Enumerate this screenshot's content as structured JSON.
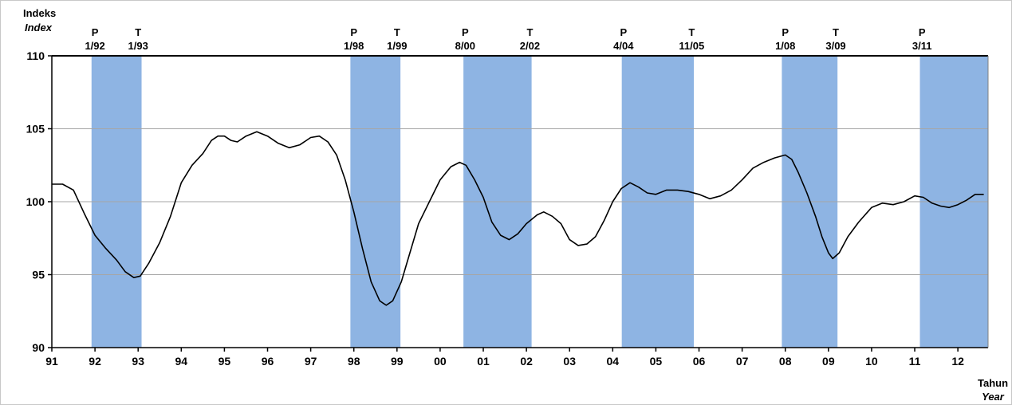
{
  "chart_data": {
    "type": "line",
    "title": "",
    "ylabel": "Indeks",
    "ylabel_en": "Index",
    "xlabel": "Tahun",
    "xlabel_en": "Year",
    "ylim": [
      90,
      110
    ],
    "yticks": [
      90,
      95,
      100,
      105,
      110
    ],
    "xlim": [
      1991.0,
      2012.7
    ],
    "xticks": [
      {
        "label": "91",
        "x": 1991
      },
      {
        "label": "92",
        "x": 1992
      },
      {
        "label": "93",
        "x": 1993
      },
      {
        "label": "94",
        "x": 1994
      },
      {
        "label": "95",
        "x": 1995
      },
      {
        "label": "96",
        "x": 1996
      },
      {
        "label": "97",
        "x": 1997
      },
      {
        "label": "98",
        "x": 1998
      },
      {
        "label": "99",
        "x": 1999
      },
      {
        "label": "00",
        "x": 2000
      },
      {
        "label": "01",
        "x": 2001
      },
      {
        "label": "02",
        "x": 2002
      },
      {
        "label": "03",
        "x": 2003
      },
      {
        "label": "04",
        "x": 2004
      },
      {
        "label": "05",
        "x": 2005
      },
      {
        "label": "06",
        "x": 2006
      },
      {
        "label": "07",
        "x": 2007
      },
      {
        "label": "08",
        "x": 2008
      },
      {
        "label": "09",
        "x": 2009
      },
      {
        "label": "10",
        "x": 2010
      },
      {
        "label": "11",
        "x": 2011
      },
      {
        "label": "12",
        "x": 2012
      }
    ],
    "grid": "horizontal",
    "shade_color": "#8eb4e3",
    "line_color": "#000000",
    "shaded_periods": [
      {
        "start": 1991.92,
        "end": 1993.08
      },
      {
        "start": 1997.92,
        "end": 1999.08
      },
      {
        "start": 2000.54,
        "end": 2002.12
      },
      {
        "start": 2004.21,
        "end": 2005.88
      },
      {
        "start": 2007.92,
        "end": 2009.21
      },
      {
        "start": 2011.12,
        "end": 2012.72
      }
    ],
    "phase_markers": [
      {
        "letter": "P",
        "date": "1/92",
        "x": 1992.0
      },
      {
        "letter": "T",
        "date": "1/93",
        "x": 1993.0
      },
      {
        "letter": "P",
        "date": "1/98",
        "x": 1998.0
      },
      {
        "letter": "T",
        "date": "1/99",
        "x": 1999.0
      },
      {
        "letter": "P",
        "date": "8/00",
        "x": 2000.58
      },
      {
        "letter": "T",
        "date": "2/02",
        "x": 2002.08
      },
      {
        "letter": "P",
        "date": "4/04",
        "x": 2004.25
      },
      {
        "letter": "T",
        "date": "11/05",
        "x": 2005.83
      },
      {
        "letter": "P",
        "date": "1/08",
        "x": 2008.0
      },
      {
        "letter": "T",
        "date": "3/09",
        "x": 2009.17
      },
      {
        "letter": "P",
        "date": "3/11",
        "x": 2011.17
      }
    ],
    "series": [
      {
        "values": [
          [
            1991.0,
            101.2
          ],
          [
            1991.25,
            101.2
          ],
          [
            1991.5,
            100.8
          ],
          [
            1991.75,
            99.2
          ],
          [
            1992.0,
            97.7
          ],
          [
            1992.25,
            96.8
          ],
          [
            1992.5,
            96.0
          ],
          [
            1992.7,
            95.2
          ],
          [
            1992.9,
            94.8
          ],
          [
            1993.05,
            94.9
          ],
          [
            1993.25,
            95.8
          ],
          [
            1993.5,
            97.2
          ],
          [
            1993.75,
            99.0
          ],
          [
            1994.0,
            101.3
          ],
          [
            1994.25,
            102.5
          ],
          [
            1994.5,
            103.3
          ],
          [
            1994.7,
            104.2
          ],
          [
            1994.85,
            104.5
          ],
          [
            1995.0,
            104.5
          ],
          [
            1995.15,
            104.2
          ],
          [
            1995.3,
            104.1
          ],
          [
            1995.5,
            104.5
          ],
          [
            1995.75,
            104.8
          ],
          [
            1996.0,
            104.5
          ],
          [
            1996.25,
            104.0
          ],
          [
            1996.5,
            103.7
          ],
          [
            1996.75,
            103.9
          ],
          [
            1997.0,
            104.4
          ],
          [
            1997.2,
            104.5
          ],
          [
            1997.4,
            104.1
          ],
          [
            1997.6,
            103.2
          ],
          [
            1997.8,
            101.5
          ],
          [
            1998.0,
            99.3
          ],
          [
            1998.2,
            96.8
          ],
          [
            1998.4,
            94.5
          ],
          [
            1998.6,
            93.2
          ],
          [
            1998.75,
            92.9
          ],
          [
            1998.9,
            93.2
          ],
          [
            1999.1,
            94.5
          ],
          [
            1999.3,
            96.5
          ],
          [
            1999.5,
            98.5
          ],
          [
            1999.75,
            100.0
          ],
          [
            2000.0,
            101.5
          ],
          [
            2000.25,
            102.4
          ],
          [
            2000.45,
            102.7
          ],
          [
            2000.6,
            102.5
          ],
          [
            2000.8,
            101.5
          ],
          [
            2001.0,
            100.3
          ],
          [
            2001.2,
            98.6
          ],
          [
            2001.4,
            97.7
          ],
          [
            2001.6,
            97.4
          ],
          [
            2001.8,
            97.8
          ],
          [
            2002.0,
            98.5
          ],
          [
            2002.25,
            99.1
          ],
          [
            2002.4,
            99.3
          ],
          [
            2002.6,
            99.0
          ],
          [
            2002.8,
            98.5
          ],
          [
            2003.0,
            97.4
          ],
          [
            2003.2,
            97.0
          ],
          [
            2003.4,
            97.1
          ],
          [
            2003.6,
            97.6
          ],
          [
            2003.8,
            98.7
          ],
          [
            2004.0,
            100.0
          ],
          [
            2004.2,
            100.9
          ],
          [
            2004.4,
            101.3
          ],
          [
            2004.6,
            101.0
          ],
          [
            2004.8,
            100.6
          ],
          [
            2005.0,
            100.5
          ],
          [
            2005.25,
            100.8
          ],
          [
            2005.5,
            100.8
          ],
          [
            2005.75,
            100.7
          ],
          [
            2006.0,
            100.5
          ],
          [
            2006.25,
            100.2
          ],
          [
            2006.5,
            100.4
          ],
          [
            2006.75,
            100.8
          ],
          [
            2007.0,
            101.5
          ],
          [
            2007.25,
            102.3
          ],
          [
            2007.5,
            102.7
          ],
          [
            2007.75,
            103.0
          ],
          [
            2008.0,
            103.2
          ],
          [
            2008.15,
            102.9
          ],
          [
            2008.3,
            102.0
          ],
          [
            2008.5,
            100.6
          ],
          [
            2008.7,
            99.0
          ],
          [
            2008.85,
            97.6
          ],
          [
            2009.0,
            96.5
          ],
          [
            2009.1,
            96.1
          ],
          [
            2009.25,
            96.5
          ],
          [
            2009.45,
            97.6
          ],
          [
            2009.7,
            98.6
          ],
          [
            2010.0,
            99.6
          ],
          [
            2010.25,
            99.9
          ],
          [
            2010.5,
            99.8
          ],
          [
            2010.75,
            100.0
          ],
          [
            2011.0,
            100.4
          ],
          [
            2011.2,
            100.3
          ],
          [
            2011.4,
            99.9
          ],
          [
            2011.6,
            99.7
          ],
          [
            2011.8,
            99.6
          ],
          [
            2012.0,
            99.8
          ],
          [
            2012.2,
            100.1
          ],
          [
            2012.4,
            100.5
          ],
          [
            2012.6,
            100.5
          ]
        ]
      }
    ]
  }
}
